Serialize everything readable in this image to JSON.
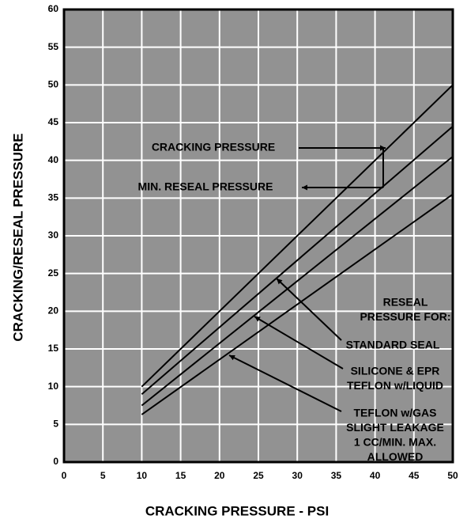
{
  "chart_data": {
    "type": "line",
    "xlabel": "CRACKING PRESSURE - PSI",
    "ylabel": "CRACKING/RESEAL PRESSURE",
    "xlim": [
      0,
      50
    ],
    "xticks": [
      0,
      5,
      10,
      15,
      20,
      25,
      30,
      35,
      40,
      45,
      50
    ],
    "ylim": [
      0,
      60
    ],
    "yticks": [
      0,
      5,
      10,
      15,
      20,
      25,
      30,
      35,
      40,
      45,
      50,
      55,
      60
    ],
    "grid": true,
    "background": "#929292",
    "grid_color": "#ffffff",
    "series": [
      {
        "name": [
          "CRACKING PRESSURE"
        ],
        "color": "#000000",
        "x": [
          10,
          50
        ],
        "values": [
          10,
          50
        ]
      },
      {
        "name": [
          "STANDARD SEAL"
        ],
        "color": "#000000",
        "x": [
          10,
          50
        ],
        "values": [
          9,
          44.5
        ]
      },
      {
        "name": [
          "SILICONE & EPR",
          "TEFLON w/LIQUID"
        ],
        "color": "#000000",
        "x": [
          10,
          50
        ],
        "values": [
          7.5,
          40.5
        ]
      },
      {
        "name": [
          "TEFLON w/GAS",
          "SLIGHT LEAKAGE",
          "1 CC/MIN. MAX.",
          "ALLOWED"
        ],
        "color": "#000000",
        "x": [
          10,
          50
        ],
        "values": [
          6.3,
          35.5
        ]
      }
    ],
    "annotations": [
      {
        "text": [
          "MIN. RESEAL PRESSURE"
        ]
      },
      {
        "text": [
          "RESEAL",
          "PRESSURE FOR:"
        ]
      }
    ]
  }
}
